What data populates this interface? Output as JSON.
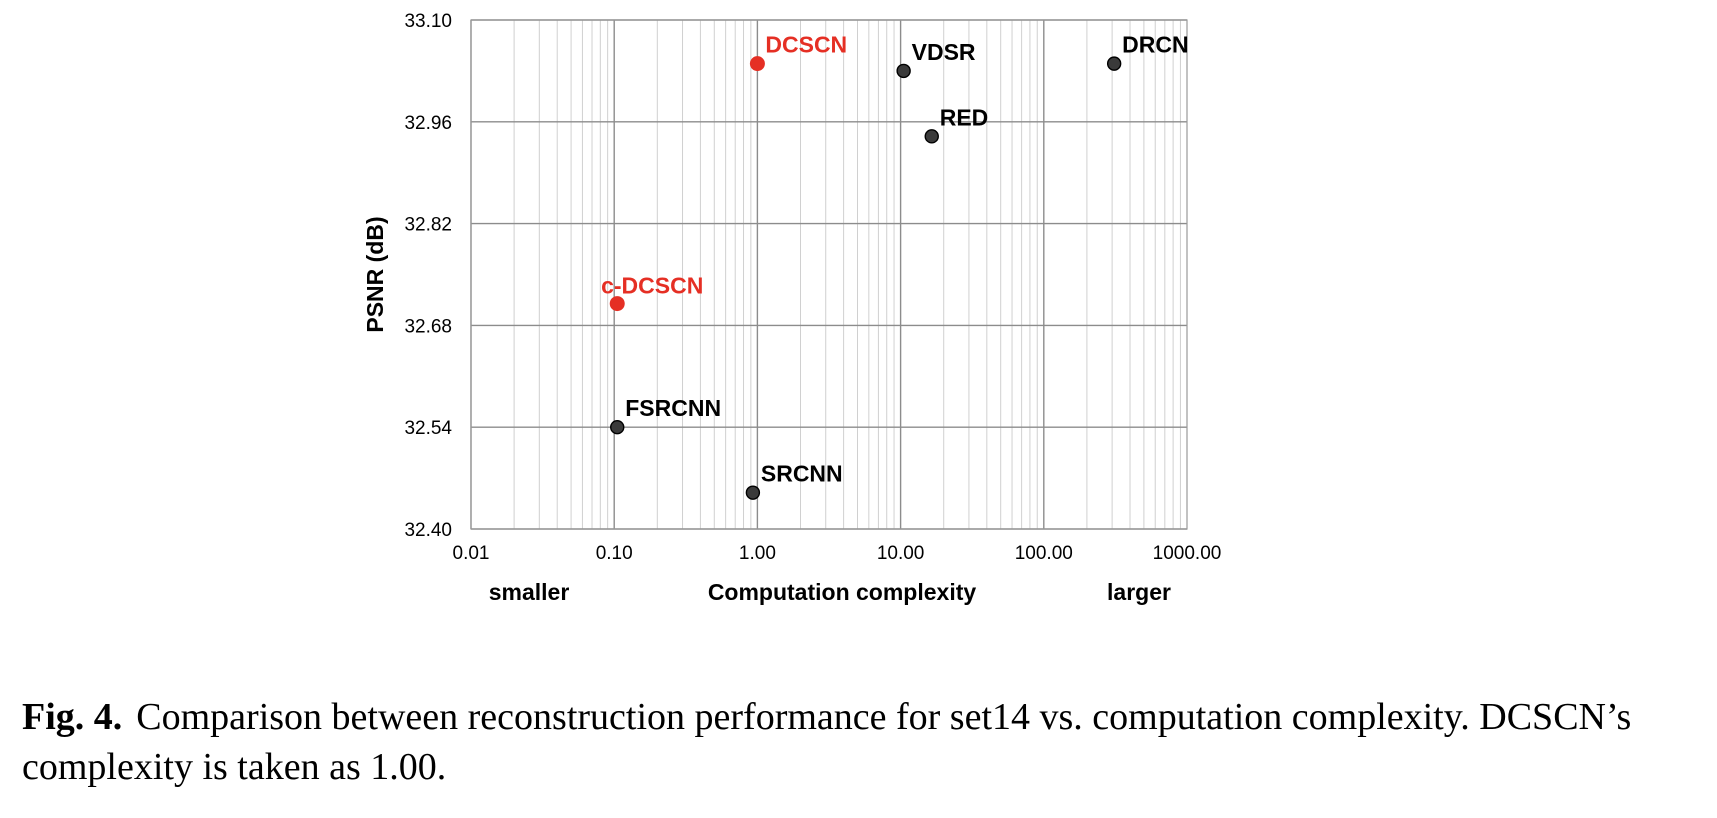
{
  "chart_data": {
    "type": "scatter",
    "xscale": "log",
    "xlim": [
      0.01,
      1000
    ],
    "ylim": [
      32.4,
      33.1
    ],
    "x_ticks": [
      "0.01",
      "0.10",
      "1.00",
      "10.00",
      "100.00",
      "1000.00"
    ],
    "y_ticks": [
      "32.40",
      "32.54",
      "32.68",
      "32.82",
      "32.96",
      "33.10"
    ],
    "ylabel": "PSNR (dB)",
    "xlabel": "Computation complexity",
    "xlabel_left": "smaller",
    "xlabel_right": "larger",
    "grid": true,
    "points": [
      {
        "name": "DCSCN",
        "x": 1.0,
        "y": 33.04,
        "color": "#e52f24"
      },
      {
        "name": "c-DCSCN",
        "x": 0.105,
        "y": 32.71,
        "color": "#e52f24"
      },
      {
        "name": "VDSR",
        "x": 10.5,
        "y": 33.03,
        "color": "#3a3a3a"
      },
      {
        "name": "RED",
        "x": 16.5,
        "y": 32.94,
        "color": "#3a3a3a"
      },
      {
        "name": "DRCN",
        "x": 310,
        "y": 33.04,
        "color": "#3a3a3a"
      },
      {
        "name": "FSRCNN",
        "x": 0.105,
        "y": 32.54,
        "color": "#3a3a3a"
      },
      {
        "name": "SRCNN",
        "x": 0.93,
        "y": 32.45,
        "color": "#3a3a3a"
      }
    ]
  },
  "caption": {
    "figure_label": "Fig. 4.",
    "text": "Comparison between reconstruction performance for set14 vs. computation complexity. DCSCN’s complexity is taken as 1.00."
  }
}
